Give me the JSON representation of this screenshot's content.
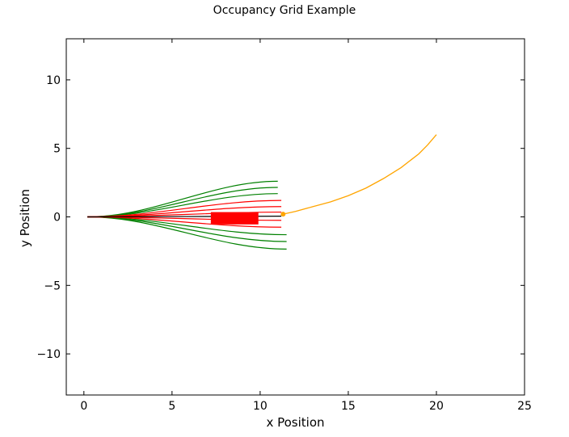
{
  "chart_data": {
    "type": "line",
    "title": "Occupancy Grid Example",
    "xlabel": "x Position",
    "ylabel": "y Position",
    "xlim": [
      -1,
      25
    ],
    "ylim": [
      -13,
      13
    ],
    "xticks": [
      0,
      5,
      10,
      15,
      20,
      25
    ],
    "yticks": [
      -10,
      -5,
      0,
      5,
      10
    ],
    "xtick_labels": [
      "0",
      "5",
      "10",
      "15",
      "20",
      "25"
    ],
    "ytick_labels": [
      "−10",
      "−5",
      "0",
      "5",
      "10"
    ],
    "grid": false,
    "legend": "none",
    "colors": {
      "free_path": "#008000",
      "blocked_path": "#ff0000",
      "chosen_path": "#000000",
      "reference_path": "#ffa500",
      "obstacle": "#ff0000"
    },
    "obstacle": {
      "x": [
        7.2,
        9.9
      ],
      "y": [
        -0.55,
        0.35
      ]
    },
    "robot_position": {
      "x": 11.3,
      "y": 0.2
    },
    "candidate_paths": [
      {
        "status": "free",
        "end": [
          11.0,
          2.6
        ]
      },
      {
        "status": "free",
        "end": [
          11.0,
          2.15
        ]
      },
      {
        "status": "free",
        "end": [
          11.0,
          1.7
        ]
      },
      {
        "status": "blocked",
        "end": [
          11.2,
          1.2
        ]
      },
      {
        "status": "blocked",
        "end": [
          11.2,
          0.75
        ]
      },
      {
        "status": "blocked",
        "end": [
          11.2,
          0.35
        ]
      },
      {
        "status": "chosen",
        "end": [
          11.2,
          0.05
        ]
      },
      {
        "status": "blocked",
        "end": [
          11.2,
          -0.25
        ]
      },
      {
        "status": "blocked",
        "end": [
          11.2,
          -0.75
        ]
      },
      {
        "status": "free",
        "end": [
          11.5,
          -1.3
        ]
      },
      {
        "status": "free",
        "end": [
          11.5,
          -1.8
        ]
      },
      {
        "status": "free",
        "end": [
          11.5,
          -2.35
        ]
      }
    ],
    "path_start": [
      0.2,
      0.0
    ],
    "reference_path": {
      "x": [
        11.3,
        12,
        13,
        14,
        15,
        16,
        17,
        18,
        19,
        19.5,
        20
      ],
      "y": [
        0.2,
        0.4,
        0.75,
        1.1,
        1.55,
        2.1,
        2.8,
        3.6,
        4.6,
        5.25,
        6.0
      ]
    }
  }
}
